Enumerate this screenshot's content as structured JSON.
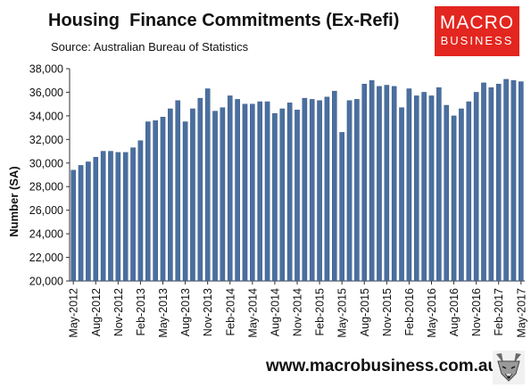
{
  "header": {
    "title": "Housing  Finance Commitments (Ex-Refi)",
    "subtitle": "Source: Australian Bureau of Statistics"
  },
  "logo": {
    "line1": "MACRO",
    "line2": "BUSINESS",
    "color": "#e3261f"
  },
  "footer": {
    "url": "www.macrobusiness.com.au",
    "icon": "fox-icon"
  },
  "colors": {
    "bar": "#4a6fa0",
    "bar_edge": "#2f4f7a"
  },
  "chart_data": {
    "type": "bar",
    "title": "Housing  Finance Commitments (Ex-Refi)",
    "ylabel": "Number (SA)",
    "xlabel": "",
    "ylim": [
      20000,
      38000
    ],
    "yticks": [
      20000,
      22000,
      24000,
      26000,
      28000,
      30000,
      32000,
      34000,
      36000,
      38000
    ],
    "ytick_labels": [
      "20,000",
      "22,000",
      "24,000",
      "26,000",
      "28,000",
      "30,000",
      "32,000",
      "34,000",
      "36,000",
      "38,000"
    ],
    "grid": false,
    "x_tick_labels": [
      "May-2012",
      "Aug-2012",
      "Nov-2012",
      "Feb-2013",
      "May-2013",
      "Aug-2013",
      "Nov-2013",
      "Feb-2014",
      "May-2014",
      "Aug-2014",
      "Nov-2014",
      "Feb-2015",
      "May-2015",
      "Aug-2015",
      "Nov-2015",
      "Feb-2016",
      "May-2016",
      "Aug-2016",
      "Nov-2016",
      "Feb-2017",
      "May-2017"
    ],
    "categories": [
      "May-2012",
      "Jun-2012",
      "Jul-2012",
      "Aug-2012",
      "Sep-2012",
      "Oct-2012",
      "Nov-2012",
      "Dec-2012",
      "Jan-2013",
      "Feb-2013",
      "Mar-2013",
      "Apr-2013",
      "May-2013",
      "Jun-2013",
      "Jul-2013",
      "Aug-2013",
      "Sep-2013",
      "Oct-2013",
      "Nov-2013",
      "Dec-2013",
      "Jan-2014",
      "Feb-2014",
      "Mar-2014",
      "Apr-2014",
      "May-2014",
      "Jun-2014",
      "Jul-2014",
      "Aug-2014",
      "Sep-2014",
      "Oct-2014",
      "Nov-2014",
      "Dec-2014",
      "Jan-2015",
      "Feb-2015",
      "Mar-2015",
      "Apr-2015",
      "May-2015",
      "Jun-2015",
      "Jul-2015",
      "Aug-2015",
      "Sep-2015",
      "Oct-2015",
      "Nov-2015",
      "Dec-2015",
      "Jan-2016",
      "Feb-2016",
      "Mar-2016",
      "Apr-2016",
      "May-2016",
      "Jun-2016",
      "Jul-2016",
      "Aug-2016",
      "Sep-2016",
      "Oct-2016",
      "Nov-2016",
      "Dec-2016",
      "Jan-2017",
      "Feb-2017",
      "Mar-2017",
      "Apr-2017",
      "May-2017"
    ],
    "values": [
      29400,
      29800,
      30100,
      30500,
      31000,
      31000,
      30900,
      30900,
      31300,
      31900,
      33500,
      33600,
      33900,
      34600,
      35300,
      33500,
      34600,
      35500,
      36300,
      34400,
      34700,
      35700,
      35400,
      35000,
      35000,
      35200,
      35200,
      34200,
      34600,
      35100,
      34500,
      35500,
      35400,
      35300,
      35600,
      36100,
      32600,
      35300,
      35400,
      36700,
      37000,
      36500,
      36600,
      36500,
      34700,
      36300,
      35700,
      36000,
      35700,
      36400,
      34900,
      34000,
      34600,
      35200,
      36000,
      36800,
      36400,
      36700,
      37100,
      37000,
      36900
    ]
  }
}
